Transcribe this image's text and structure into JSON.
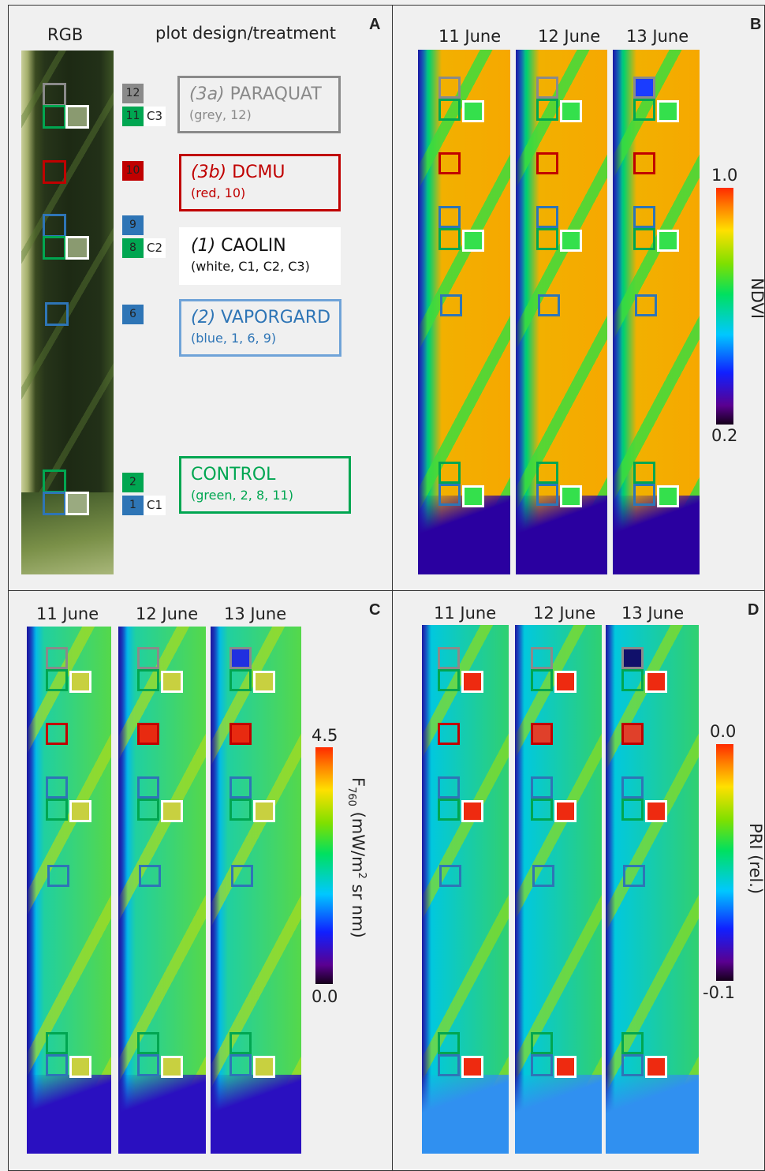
{
  "panels": {
    "a": "A",
    "b": "B",
    "c": "C",
    "d": "D"
  },
  "panel_a": {
    "rgb_label": "RGB",
    "treatment_header": "plot design/treatment",
    "plot_numbers": [
      "12",
      "11",
      "10",
      "9",
      "8",
      "6",
      "2",
      "1"
    ],
    "control_labels": [
      "C3",
      "C2",
      "C1"
    ],
    "treatments": [
      {
        "prefix": "(3a)",
        "name": "PARAQUAT",
        "sub": "(grey, 12)",
        "color": "#8a8a8a"
      },
      {
        "prefix": "(3b)",
        "name": "DCMU",
        "sub": "(red, 10)",
        "color": "#c00000"
      },
      {
        "prefix": "(1)",
        "name": "CAOLIN",
        "sub": "(white, C1, C2, C3)",
        "color": "#111111"
      },
      {
        "prefix": "(2)",
        "name": "VAPORGARD",
        "sub": "(blue, 1, 6, 9)",
        "color": "#2e75b6"
      },
      {
        "prefix": "",
        "name": "CONTROL",
        "sub": "(green, 2, 8, 11)",
        "color": "#00a651"
      }
    ]
  },
  "dates": [
    "11 June",
    "12 June",
    "13 June"
  ],
  "colorbars": {
    "b": {
      "label": "NDVI",
      "max": "1.0",
      "min": "0.2"
    },
    "c": {
      "label_main": "F",
      "label_sub": "760",
      "label_units": " (mW/m",
      "label_sup": "2",
      "label_end": " sr nm)",
      "max": "4.5",
      "min": "0.0"
    },
    "d": {
      "label": "PRI (rel.)",
      "max": "0.0",
      "min": "-0.1"
    }
  },
  "colors": {
    "grey": "#8a8a8a",
    "red": "#c00000",
    "white": "#ffffff",
    "blue": "#2e75b6",
    "green": "#00a651"
  }
}
